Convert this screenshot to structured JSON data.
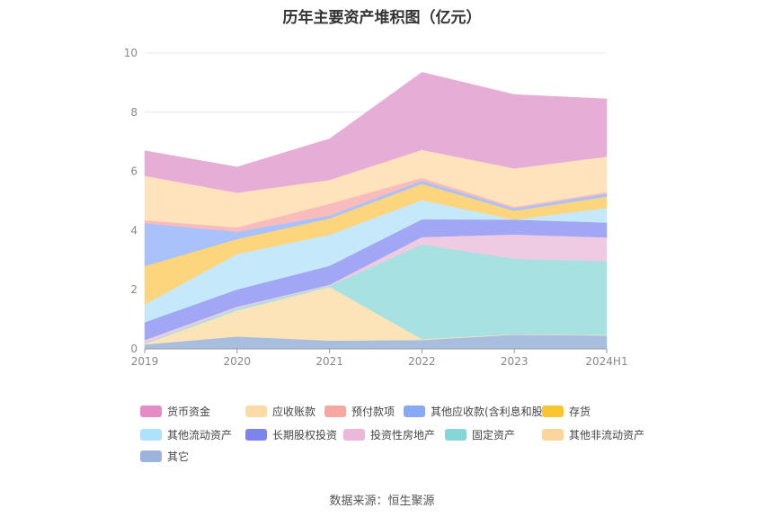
{
  "chart_data": {
    "type": "area",
    "stacked": true,
    "title": "历年主要资产堆积图（亿元）",
    "categories": [
      "2019",
      "2020",
      "2021",
      "2022",
      "2023",
      "2024H1"
    ],
    "ylim": [
      0,
      10
    ],
    "yticks": [
      "0",
      "2",
      "4",
      "6",
      "8",
      "10"
    ],
    "grid": true,
    "legend_position": "bottom",
    "series": [
      {
        "name": "其它",
        "color": "#a8bede",
        "values": [
          0.15,
          0.42,
          0.28,
          0.3,
          0.48,
          0.45
        ]
      },
      {
        "name": "其他非流动资产",
        "color": "#fde3b8",
        "values": [
          0.02,
          0.88,
          1.82,
          0.03,
          0.02,
          0.02
        ]
      },
      {
        "name": "固定资产",
        "color": "#a8e1e1",
        "values": [
          0.03,
          0.08,
          0.04,
          3.2,
          2.55,
          2.5
        ]
      },
      {
        "name": "投资性房地产",
        "color": "#eecbe3",
        "values": [
          0.1,
          0.05,
          0.03,
          0.25,
          0.82,
          0.8
        ]
      },
      {
        "name": "长期股权投资",
        "color": "#a1a6f5",
        "values": [
          0.6,
          0.58,
          0.64,
          0.6,
          0.5,
          0.5
        ]
      },
      {
        "name": "其他流动资产",
        "color": "#c5e9fb",
        "values": [
          0.6,
          1.2,
          1.05,
          0.65,
          0.0,
          0.5
        ]
      },
      {
        "name": "存货",
        "color": "#fdd57d",
        "values": [
          1.3,
          0.5,
          0.55,
          0.55,
          0.3,
          0.38
        ]
      },
      {
        "name": "其他应收款(含利息和股利)",
        "color": "#a9c2fb",
        "values": [
          1.45,
          0.25,
          0.1,
          0.1,
          0.08,
          0.1
        ]
      },
      {
        "name": "预付款项",
        "color": "#f9bcbc",
        "values": [
          0.1,
          0.15,
          0.4,
          0.1,
          0.05,
          0.05
        ]
      },
      {
        "name": "应收账款",
        "color": "#fee3bd",
        "values": [
          1.5,
          1.17,
          0.8,
          0.95,
          1.3,
          1.2
        ]
      },
      {
        "name": "货币资金",
        "color": "#e6aed6",
        "values": [
          0.85,
          0.87,
          1.39,
          2.62,
          2.5,
          1.95
        ]
      }
    ]
  },
  "legend": [
    {
      "label": "货币资金",
      "color": "#e58bc8"
    },
    {
      "label": "应收账款",
      "color": "#fddaa6"
    },
    {
      "label": "预付款项",
      "color": "#f7a7a1"
    },
    {
      "label": "其他应收款(含利息和股利)",
      "color": "#87a9f6"
    },
    {
      "label": "存货",
      "color": "#fbc531"
    },
    {
      "label": "其他流动资产",
      "color": "#aee2fb"
    },
    {
      "label": "长期股权投资",
      "color": "#7f83ee"
    },
    {
      "label": "投资性房地产",
      "color": "#ebb8db"
    },
    {
      "label": "固定资产",
      "color": "#85d6d6"
    },
    {
      "label": "其他非流动资产",
      "color": "#fdd59c"
    },
    {
      "label": "其它",
      "color": "#9db3da"
    }
  ],
  "source": "数据来源：恒生聚源"
}
